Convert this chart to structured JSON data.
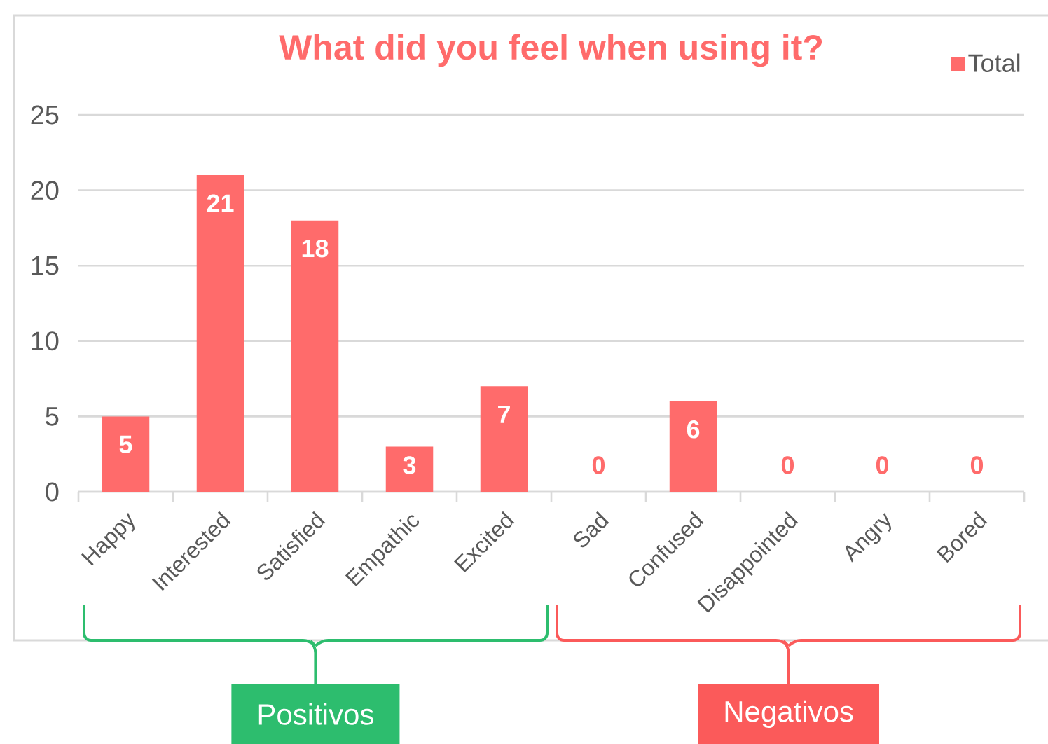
{
  "chart_data": {
    "type": "bar",
    "title": "What did you feel when using it?",
    "categories": [
      "Happy",
      "Interested",
      "Satisfied",
      "Empathic",
      "Excited",
      "Sad",
      "Confused",
      "Disappointed",
      "Angry",
      "Bored"
    ],
    "series": [
      {
        "name": "Total",
        "color": "#ff6b6b",
        "values": [
          5,
          21,
          18,
          3,
          7,
          0,
          6,
          0,
          0,
          0
        ]
      }
    ],
    "ylim": [
      0,
      25
    ],
    "yticks": [
      0,
      5,
      10,
      15,
      20,
      25
    ],
    "grid": "y",
    "legend": "top right",
    "data_labels": true,
    "annotations": [
      "Positivos",
      "Negativos"
    ]
  }
}
